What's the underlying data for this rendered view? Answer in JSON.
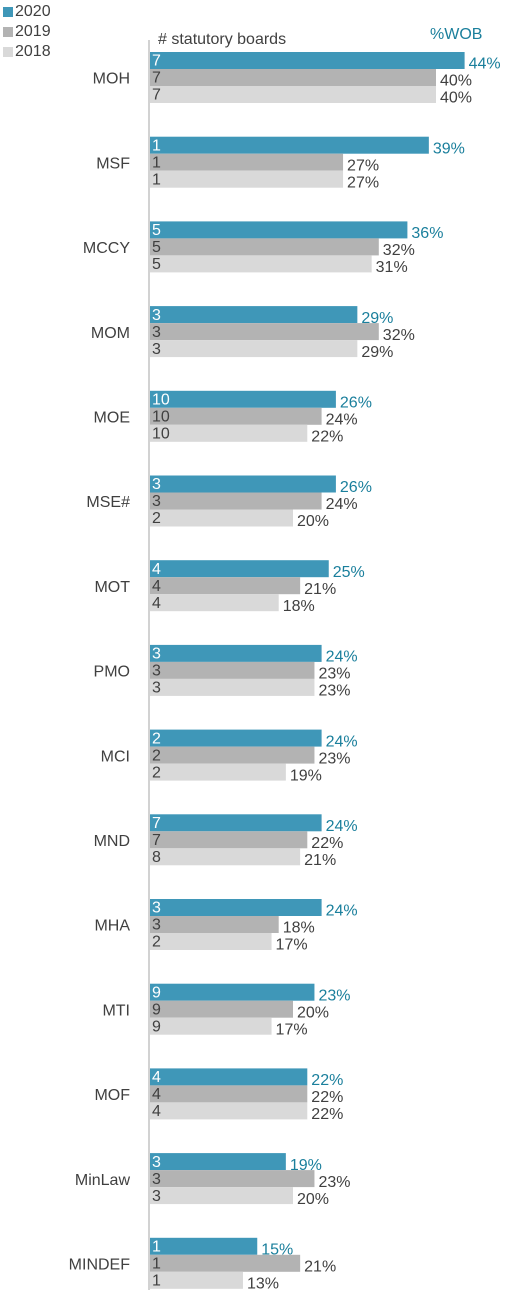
{
  "chart_data": {
    "type": "bar",
    "orientation": "horizontal",
    "header_left": "# statutory boards",
    "header_right": "%WOB",
    "categories": [
      "MOH",
      "MSF",
      "MCCY",
      "MOM",
      "MOE",
      "MSE#",
      "MOT",
      "PMO",
      "MCI",
      "MND",
      "MHA",
      "MTI",
      "MOF",
      "MinLaw",
      "MINDEF"
    ],
    "series": [
      {
        "name": "2020",
        "color": "#3f97b8",
        "label_color": "#1a7f9c",
        "values": [
          44,
          39,
          36,
          29,
          26,
          26,
          25,
          24,
          24,
          24,
          24,
          23,
          22,
          19,
          15
        ],
        "value_labels": [
          "44%",
          "39%",
          "36%",
          "29%",
          "26%",
          "26%",
          "25%",
          "24%",
          "24%",
          "24%",
          "24%",
          "23%",
          "22%",
          "19%",
          "15%"
        ],
        "board_counts": [
          7,
          1,
          5,
          3,
          10,
          3,
          4,
          3,
          2,
          7,
          3,
          9,
          4,
          3,
          1
        ]
      },
      {
        "name": "2019",
        "color": "#b3b3b3",
        "label_color": "#404040",
        "values": [
          40,
          27,
          32,
          32,
          24,
          24,
          21,
          23,
          23,
          22,
          18,
          20,
          22,
          23,
          21
        ],
        "value_labels": [
          "40%",
          "27%",
          "32%",
          "32%",
          "24%",
          "24%",
          "21%",
          "23%",
          "23%",
          "22%",
          "18%",
          "20%",
          "22%",
          "23%",
          "21%"
        ],
        "board_counts": [
          7,
          1,
          5,
          3,
          10,
          3,
          4,
          3,
          2,
          7,
          3,
          9,
          4,
          3,
          1
        ]
      },
      {
        "name": "2018",
        "color": "#d9d9d9",
        "label_color": "#404040",
        "values": [
          40,
          27,
          31,
          29,
          22,
          20,
          18,
          23,
          19,
          21,
          17,
          17,
          22,
          20,
          13
        ],
        "value_labels": [
          "40%",
          "27%",
          "31%",
          "29%",
          "22%",
          "20%",
          "18%",
          "23%",
          "19%",
          "21%",
          "17%",
          "17%",
          "22%",
          "20%",
          "13%"
        ],
        "board_counts": [
          7,
          1,
          5,
          3,
          10,
          2,
          4,
          3,
          2,
          8,
          2,
          9,
          4,
          3,
          1
        ]
      }
    ],
    "legend": "top-left"
  }
}
